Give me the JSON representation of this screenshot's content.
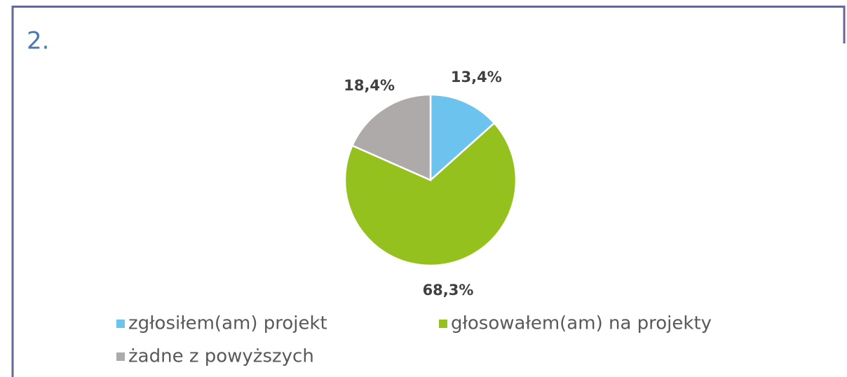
{
  "chart_data": {
    "type": "pie",
    "title": "2.",
    "categories": [
      "zgłosiłem(am) projekt",
      "głosowałem(am) na projekty",
      "żadne z powyższych"
    ],
    "values": [
      13.4,
      68.3,
      18.4
    ],
    "value_labels": [
      "13,4%",
      "68,3%",
      "18,4%"
    ],
    "colors": [
      "#6cc3ee",
      "#95c11f",
      "#aeaaa9"
    ],
    "legend": "bottom"
  }
}
